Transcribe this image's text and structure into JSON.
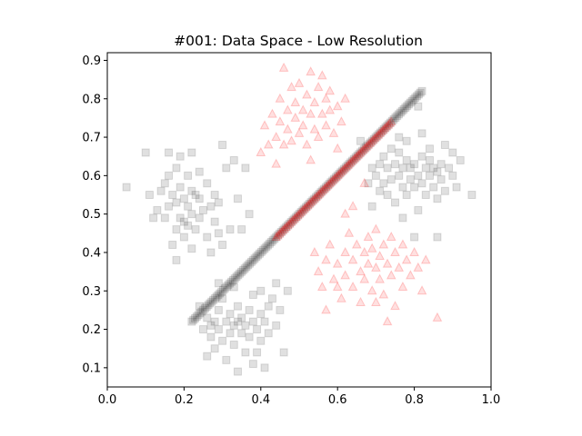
{
  "chart_data": {
    "type": "scatter",
    "title": "#001: Data Space - Low Resolution",
    "xlabel": "",
    "ylabel": "",
    "xlim": [
      0.0,
      1.0
    ],
    "ylim": [
      0.05,
      0.92
    ],
    "x_ticks": [
      0.0,
      0.2,
      0.4,
      0.6,
      0.8,
      1.0
    ],
    "x_tick_labels": [
      "0.0",
      "0.2",
      "0.4",
      "0.6",
      "0.8",
      "1.0"
    ],
    "y_ticks": [
      0.1,
      0.2,
      0.3,
      0.4,
      0.5,
      0.6,
      0.7,
      0.8,
      0.9
    ],
    "y_tick_labels": [
      "0.1",
      "0.2",
      "0.3",
      "0.4",
      "0.5",
      "0.6",
      "0.7",
      "0.8",
      "0.9"
    ],
    "grid": false,
    "series": [
      {
        "marker": "square",
        "color": "#000000",
        "points": [
          [
            0.05,
            0.57
          ],
          [
            0.1,
            0.66
          ],
          [
            0.11,
            0.55
          ],
          [
            0.12,
            0.49
          ],
          [
            0.13,
            0.51
          ],
          [
            0.14,
            0.56
          ],
          [
            0.15,
            0.58
          ],
          [
            0.15,
            0.49
          ],
          [
            0.16,
            0.66
          ],
          [
            0.16,
            0.6
          ],
          [
            0.16,
            0.52
          ],
          [
            0.17,
            0.55
          ],
          [
            0.17,
            0.42
          ],
          [
            0.18,
            0.62
          ],
          [
            0.18,
            0.53
          ],
          [
            0.18,
            0.46
          ],
          [
            0.18,
            0.38
          ],
          [
            0.19,
            0.65
          ],
          [
            0.19,
            0.57
          ],
          [
            0.19,
            0.49
          ],
          [
            0.2,
            0.54
          ],
          [
            0.2,
            0.48
          ],
          [
            0.2,
            0.44
          ],
          [
            0.21,
            0.6
          ],
          [
            0.21,
            0.52
          ],
          [
            0.21,
            0.47
          ],
          [
            0.22,
            0.66
          ],
          [
            0.22,
            0.56
          ],
          [
            0.22,
            0.5
          ],
          [
            0.22,
            0.41
          ],
          [
            0.23,
            0.55
          ],
          [
            0.23,
            0.46
          ],
          [
            0.24,
            0.61
          ],
          [
            0.24,
            0.54
          ],
          [
            0.24,
            0.49
          ],
          [
            0.25,
            0.51
          ],
          [
            0.26,
            0.58
          ],
          [
            0.26,
            0.44
          ],
          [
            0.27,
            0.52
          ],
          [
            0.27,
            0.4
          ],
          [
            0.28,
            0.55
          ],
          [
            0.28,
            0.48
          ],
          [
            0.29,
            0.53
          ],
          [
            0.29,
            0.45
          ],
          [
            0.3,
            0.68
          ],
          [
            0.31,
            0.62
          ],
          [
            0.33,
            0.64
          ],
          [
            0.34,
            0.54
          ],
          [
            0.35,
            0.46
          ],
          [
            0.36,
            0.62
          ],
          [
            0.37,
            0.5
          ],
          [
            0.32,
            0.46
          ],
          [
            0.3,
            0.42
          ],
          [
            0.24,
            0.26
          ],
          [
            0.25,
            0.2
          ],
          [
            0.26,
            0.23
          ],
          [
            0.27,
            0.18
          ],
          [
            0.28,
            0.22
          ],
          [
            0.28,
            0.15
          ],
          [
            0.29,
            0.25
          ],
          [
            0.29,
            0.2
          ],
          [
            0.3,
            0.17
          ],
          [
            0.3,
            0.28
          ],
          [
            0.31,
            0.22
          ],
          [
            0.31,
            0.12
          ],
          [
            0.32,
            0.24
          ],
          [
            0.32,
            0.19
          ],
          [
            0.33,
            0.21
          ],
          [
            0.33,
            0.16
          ],
          [
            0.34,
            0.26
          ],
          [
            0.34,
            0.22
          ],
          [
            0.34,
            0.09
          ],
          [
            0.35,
            0.19
          ],
          [
            0.35,
            0.23
          ],
          [
            0.36,
            0.21
          ],
          [
            0.36,
            0.14
          ],
          [
            0.37,
            0.25
          ],
          [
            0.37,
            0.18
          ],
          [
            0.38,
            0.22
          ],
          [
            0.38,
            0.29
          ],
          [
            0.39,
            0.2
          ],
          [
            0.39,
            0.14
          ],
          [
            0.4,
            0.24
          ],
          [
            0.4,
            0.17
          ],
          [
            0.4,
            0.3
          ],
          [
            0.41,
            0.22
          ],
          [
            0.41,
            0.1
          ],
          [
            0.42,
            0.26
          ],
          [
            0.42,
            0.19
          ],
          [
            0.43,
            0.28
          ],
          [
            0.44,
            0.21
          ],
          [
            0.44,
            0.32
          ],
          [
            0.45,
            0.25
          ],
          [
            0.46,
            0.14
          ],
          [
            0.47,
            0.3
          ],
          [
            0.38,
            0.11
          ],
          [
            0.33,
            0.31
          ],
          [
            0.29,
            0.32
          ],
          [
            0.27,
            0.21
          ],
          [
            0.26,
            0.13
          ],
          [
            0.66,
            0.69
          ],
          [
            0.68,
            0.58
          ],
          [
            0.69,
            0.52
          ],
          [
            0.7,
            0.6
          ],
          [
            0.71,
            0.56
          ],
          [
            0.72,
            0.65
          ],
          [
            0.73,
            0.62
          ],
          [
            0.73,
            0.55
          ],
          [
            0.74,
            0.67
          ],
          [
            0.74,
            0.59
          ],
          [
            0.75,
            0.63
          ],
          [
            0.75,
            0.53
          ],
          [
            0.76,
            0.6
          ],
          [
            0.76,
            0.66
          ],
          [
            0.77,
            0.57
          ],
          [
            0.77,
            0.62
          ],
          [
            0.78,
            0.55
          ],
          [
            0.78,
            0.64
          ],
          [
            0.78,
            0.69
          ],
          [
            0.79,
            0.59
          ],
          [
            0.79,
            0.62
          ],
          [
            0.8,
            0.57
          ],
          [
            0.8,
            0.63
          ],
          [
            0.81,
            0.51
          ],
          [
            0.81,
            0.6
          ],
          [
            0.82,
            0.65
          ],
          [
            0.82,
            0.58
          ],
          [
            0.83,
            0.62
          ],
          [
            0.83,
            0.55
          ],
          [
            0.84,
            0.6
          ],
          [
            0.84,
            0.64
          ],
          [
            0.85,
            0.57
          ],
          [
            0.85,
            0.62
          ],
          [
            0.86,
            0.54
          ],
          [
            0.86,
            0.61
          ],
          [
            0.87,
            0.63
          ],
          [
            0.87,
            0.59
          ],
          [
            0.88,
            0.68
          ],
          [
            0.88,
            0.56
          ],
          [
            0.89,
            0.62
          ],
          [
            0.9,
            0.6
          ],
          [
            0.9,
            0.66
          ],
          [
            0.91,
            0.57
          ],
          [
            0.92,
            0.64
          ],
          [
            0.95,
            0.55
          ],
          [
            0.82,
            0.71
          ],
          [
            0.81,
            0.78
          ],
          [
            0.8,
            0.44
          ],
          [
            0.86,
            0.44
          ],
          [
            0.77,
            0.49
          ],
          [
            0.69,
            0.62
          ],
          [
            0.72,
            0.58
          ],
          [
            0.76,
            0.7
          ],
          [
            0.84,
            0.67
          ],
          [
            0.71,
            0.63
          ]
        ],
        "diagonal": {
          "from": [
            0.22,
            0.22
          ],
          "to": [
            0.82,
            0.82
          ],
          "count": 140
        }
      },
      {
        "marker": "triangle",
        "color": "#ff0000",
        "points": [
          [
            0.4,
            0.66
          ],
          [
            0.41,
            0.73
          ],
          [
            0.42,
            0.68
          ],
          [
            0.43,
            0.76
          ],
          [
            0.44,
            0.7
          ],
          [
            0.45,
            0.8
          ],
          [
            0.45,
            0.74
          ],
          [
            0.46,
            0.68
          ],
          [
            0.46,
            0.88
          ],
          [
            0.47,
            0.77
          ],
          [
            0.47,
            0.72
          ],
          [
            0.48,
            0.83
          ],
          [
            0.48,
            0.69
          ],
          [
            0.49,
            0.75
          ],
          [
            0.49,
            0.79
          ],
          [
            0.5,
            0.71
          ],
          [
            0.5,
            0.84
          ],
          [
            0.51,
            0.77
          ],
          [
            0.51,
            0.73
          ],
          [
            0.52,
            0.81
          ],
          [
            0.52,
            0.68
          ],
          [
            0.53,
            0.76
          ],
          [
            0.53,
            0.87
          ],
          [
            0.54,
            0.72
          ],
          [
            0.54,
            0.79
          ],
          [
            0.55,
            0.83
          ],
          [
            0.55,
            0.7
          ],
          [
            0.56,
            0.76
          ],
          [
            0.56,
            0.86
          ],
          [
            0.57,
            0.73
          ],
          [
            0.57,
            0.8
          ],
          [
            0.58,
            0.77
          ],
          [
            0.58,
            0.82
          ],
          [
            0.59,
            0.71
          ],
          [
            0.6,
            0.78
          ],
          [
            0.61,
            0.74
          ],
          [
            0.62,
            0.8
          ],
          [
            0.44,
            0.63
          ],
          [
            0.53,
            0.64
          ],
          [
            0.6,
            0.67
          ],
          [
            0.54,
            0.4
          ],
          [
            0.55,
            0.35
          ],
          [
            0.56,
            0.31
          ],
          [
            0.57,
            0.38
          ],
          [
            0.58,
            0.42
          ],
          [
            0.59,
            0.33
          ],
          [
            0.6,
            0.37
          ],
          [
            0.61,
            0.28
          ],
          [
            0.62,
            0.4
          ],
          [
            0.62,
            0.34
          ],
          [
            0.63,
            0.45
          ],
          [
            0.64,
            0.38
          ],
          [
            0.64,
            0.31
          ],
          [
            0.65,
            0.42
          ],
          [
            0.66,
            0.35
          ],
          [
            0.66,
            0.27
          ],
          [
            0.67,
            0.4
          ],
          [
            0.67,
            0.33
          ],
          [
            0.68,
            0.44
          ],
          [
            0.68,
            0.37
          ],
          [
            0.69,
            0.41
          ],
          [
            0.69,
            0.3
          ],
          [
            0.7,
            0.36
          ],
          [
            0.7,
            0.46
          ],
          [
            0.71,
            0.39
          ],
          [
            0.71,
            0.33
          ],
          [
            0.72,
            0.42
          ],
          [
            0.72,
            0.29
          ],
          [
            0.73,
            0.37
          ],
          [
            0.74,
            0.44
          ],
          [
            0.74,
            0.34
          ],
          [
            0.75,
            0.4
          ],
          [
            0.75,
            0.26
          ],
          [
            0.76,
            0.36
          ],
          [
            0.77,
            0.42
          ],
          [
            0.77,
            0.31
          ],
          [
            0.78,
            0.38
          ],
          [
            0.79,
            0.34
          ],
          [
            0.8,
            0.4
          ],
          [
            0.81,
            0.36
          ],
          [
            0.82,
            0.3
          ],
          [
            0.83,
            0.38
          ],
          [
            0.86,
            0.23
          ],
          [
            0.64,
            0.52
          ],
          [
            0.67,
            0.58
          ],
          [
            0.62,
            0.5
          ],
          [
            0.6,
            0.31
          ],
          [
            0.57,
            0.25
          ],
          [
            0.73,
            0.22
          ],
          [
            0.7,
            0.27
          ]
        ],
        "diagonal": {
          "from": [
            0.44,
            0.44
          ],
          "to": [
            0.74,
            0.74
          ],
          "count": 70
        }
      }
    ]
  }
}
